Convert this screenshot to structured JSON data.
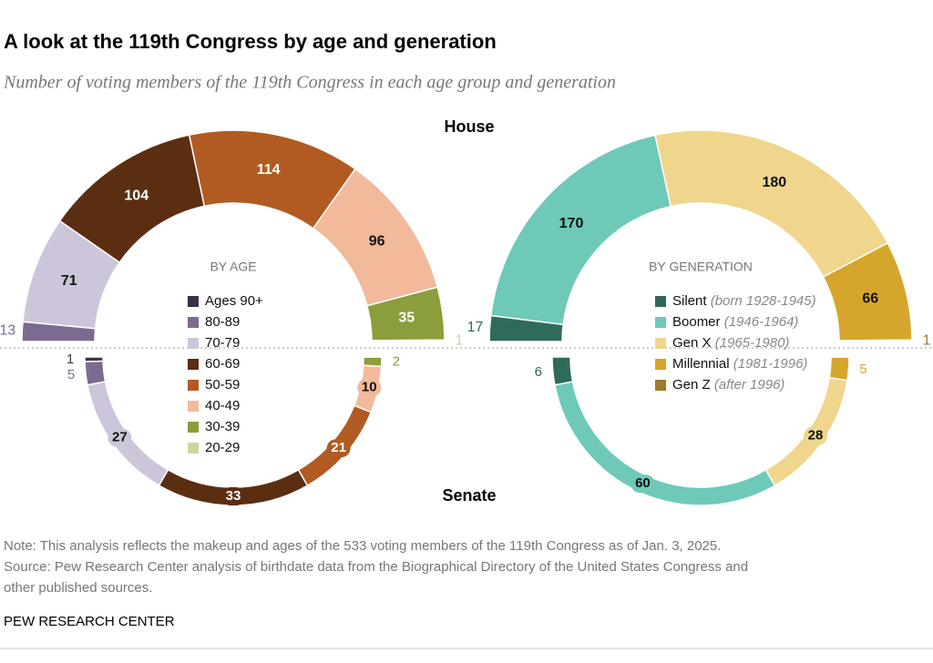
{
  "title": "A look at the 119th Congress by age and generation",
  "subtitle": "Number of voting members of the 119th Congress in each age group and generation",
  "house_label": "House",
  "senate_label": "Senate",
  "notes": [
    "Note: This analysis reflects the makeup and ages of the 533 voting members of the 119th Congress as of Jan. 3, 2025.",
    "Source: Pew Research Center analysis of birthdate data from the Biographical Directory of the United States Congress and",
    "other published sources."
  ],
  "footer": "PEW RESEARCH CENTER",
  "chart_data": [
    {
      "type": "parliament",
      "label": "BY AGE",
      "categories": [
        "Ages 90+",
        "80-89",
        "70-79",
        "60-69",
        "50-59",
        "40-49",
        "30-39",
        "20-29"
      ],
      "colors": [
        "#3a3148",
        "#7b6b90",
        "#cdc6da",
        "#5b2e12",
        "#b15b22",
        "#f2b99b",
        "#8b9e3c",
        "#c9d99b"
      ],
      "house": [
        0,
        13,
        71,
        104,
        114,
        96,
        35,
        1
      ],
      "senate": [
        1,
        5,
        27,
        33,
        21,
        10,
        2,
        0
      ]
    },
    {
      "type": "parliament",
      "label": "BY GENERATION",
      "categories": [
        "Silent",
        "Boomer",
        "Gen X",
        "Millennial",
        "Gen Z"
      ],
      "category_notes": [
        "(born 1928-1945)",
        "(1946-1964)",
        "(1965-1980)",
        "(1981-1996)",
        "(after 1996)"
      ],
      "colors": [
        "#2f6b5a",
        "#6ec9b9",
        "#efd68c",
        "#d5a62b",
        "#9c7b2f"
      ],
      "house": [
        17,
        170,
        180,
        66,
        1
      ],
      "senate": [
        6,
        60,
        28,
        5,
        0
      ]
    }
  ]
}
